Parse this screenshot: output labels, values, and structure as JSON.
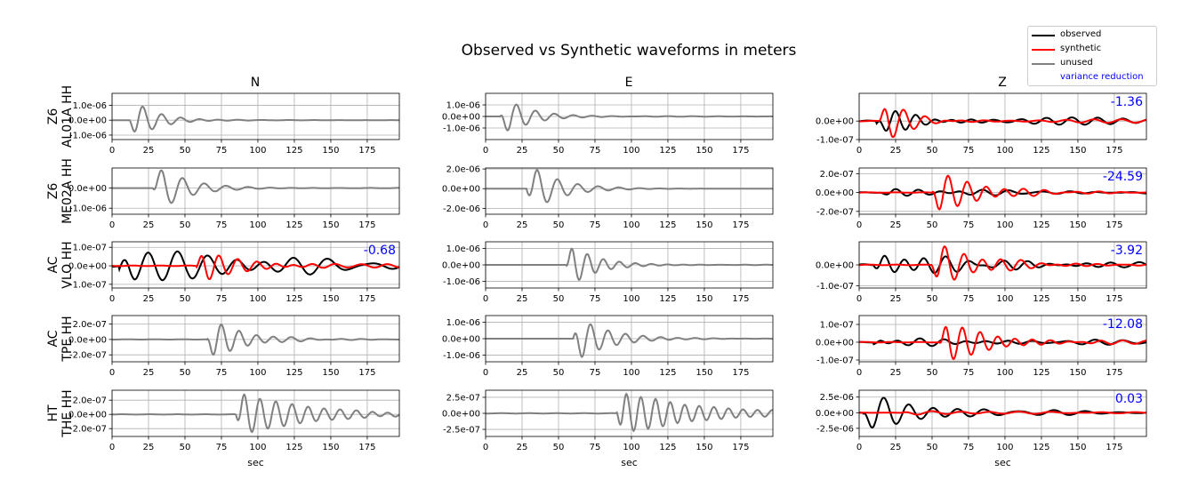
{
  "chart_data": {
    "type": "line",
    "title": "Observed vs Synthetic waveforms in meters",
    "columns": [
      "N",
      "E",
      "Z"
    ],
    "xlabel": "sec",
    "xlim": [
      0,
      197
    ],
    "xticks": [
      0,
      25,
      50,
      75,
      100,
      125,
      150,
      175
    ],
    "grid": true,
    "legend": {
      "placement": "top-right",
      "entries": [
        {
          "label": "observed",
          "color": "#000000"
        },
        {
          "label": "synthetic",
          "color": "#ff0000"
        },
        {
          "label": "unused",
          "color": "#808080"
        },
        {
          "label": "variance reduction",
          "color": "#0000ff",
          "text_only": true
        }
      ]
    },
    "stations": [
      {
        "label": "Z6\nAL01A HH",
        "panels": [
          {
            "component": "N",
            "used": false,
            "ylim": [
              -1.3e-06,
              1.8e-06
            ],
            "yticks": [
              {
                "v": 1e-06,
                "t": "1.0e-06"
              },
              {
                "v": 0,
                "t": "0.0e+00"
              },
              {
                "v": -1e-06,
                "t": "-1.0e-06"
              }
            ],
            "unused_wave": {
              "onset": 12,
              "amp": 1.6e-06,
              "period": 13,
              "decay": 16,
              "coda": 1.5e-08,
              "seed": 1
            }
          },
          {
            "component": "E",
            "used": false,
            "ylim": [
              -2e-06,
              2e-06
            ],
            "yticks": [
              {
                "v": 1e-06,
                "t": "1.0e-06"
              },
              {
                "v": 0,
                "t": "0.0e+00"
              },
              {
                "v": -1e-06,
                "t": "-1.0e-06"
              }
            ],
            "unused_wave": {
              "onset": 10,
              "amp": 1.9e-06,
              "period": 13,
              "decay": 18,
              "coda": 2e-08,
              "seed": 2
            }
          },
          {
            "component": "Z",
            "used": true,
            "vr": "-1.36",
            "ylim": [
              -1e-07,
              1.5e-07
            ],
            "yticks": [
              {
                "v": 0,
                "t": "0.0e+00"
              },
              {
                "v": -1e-07,
                "t": "-1.0e-07"
              }
            ],
            "observed": {
              "onset": 12,
              "amp": 7e-08,
              "period": 13,
              "decay": 25,
              "coda": 2e-08,
              "seed": 3
            },
            "synthetic": {
              "onset": 14,
              "amp": 1.6e-07,
              "period": 14,
              "decay": 15,
              "coda": 1e-08,
              "seed": 4
            }
          }
        ]
      },
      {
        "label": "Z6\nME02A HH",
        "panels": [
          {
            "component": "N",
            "used": false,
            "ylim": [
              -1.3e-06,
              1e-06
            ],
            "yticks": [
              {
                "v": 0,
                "t": "0.0e+00"
              },
              {
                "v": -1e-06,
                "t": "-1.0e-06"
              }
            ],
            "unused_wave": {
              "onset": 28,
              "amp": 1.4e-06,
              "period": 15,
              "decay": 20,
              "coda": 1e-08,
              "seed": 5
            }
          },
          {
            "component": "E",
            "used": false,
            "ylim": [
              -2.6e-06,
              2.1e-06
            ],
            "yticks": [
              {
                "v": 2e-06,
                "t": "2.0e-06"
              },
              {
                "v": 0,
                "t": "0.0e+00"
              },
              {
                "v": -2e-06,
                "t": "-2.0e-06"
              }
            ],
            "unused_wave": {
              "onset": 28,
              "amp": 2.8e-06,
              "period": 14,
              "decay": 20,
              "coda": 1e-08,
              "seed": 6
            }
          },
          {
            "component": "Z",
            "used": true,
            "vr": "-24.59",
            "ylim": [
              -2.3e-07,
              2.6e-07
            ],
            "yticks": [
              {
                "v": 2e-07,
                "t": "2.0e-07"
              },
              {
                "v": 0,
                "t": "0.0e+00"
              },
              {
                "v": -2e-07,
                "t": "-2.0e-07"
              }
            ],
            "observed": {
              "onset": 15,
              "amp": 4e-08,
              "period": 15,
              "decay": 60,
              "coda": 2e-08,
              "seed": 7
            },
            "synthetic": {
              "onset": 50,
              "amp": 2.6e-07,
              "period": 13,
              "decay": 28,
              "coda": 1.5e-08,
              "seed": 8
            }
          }
        ]
      },
      {
        "label": "AC\nVLO HH",
        "panels": [
          {
            "component": "N",
            "used": true,
            "vr": "-0.68",
            "ylim": [
              -1.2e-07,
              1.3e-07
            ],
            "yticks": [
              {
                "v": 1e-07,
                "t": "1.0e-07"
              },
              {
                "v": 0,
                "t": "0.0e+00"
              },
              {
                "v": -1e-07,
                "t": "-1.0e-07"
              }
            ],
            "observed": {
              "onset": 5,
              "amp": 1.2e-07,
              "period": 20,
              "decay": 70,
              "coda": 3e-08,
              "seed": 9
            },
            "synthetic": {
              "onset": 58,
              "amp": 1.1e-07,
              "period": 13,
              "decay": 25,
              "coda": 1e-08,
              "seed": 10
            }
          },
          {
            "component": "E",
            "used": false,
            "ylim": [
              -1.4e-06,
              1.4e-06
            ],
            "yticks": [
              {
                "v": 1e-06,
                "t": "1.0e-06"
              },
              {
                "v": 0,
                "t": "0.0e+00"
              },
              {
                "v": -1e-06,
                "t": "-1.0e-06"
              }
            ],
            "unused_wave": {
              "onset": 55,
              "amp": 1.5e-06,
              "period": 11,
              "decay": 18,
              "coda": 1e-08,
              "seed": 11
            }
          },
          {
            "component": "Z",
            "used": true,
            "vr": "-3.92",
            "ylim": [
              -1.1e-07,
              1.1e-07
            ],
            "yticks": [
              {
                "v": 0,
                "t": "0.0e+00"
              },
              {
                "v": -1e-07,
                "t": "-1.0e-07"
              }
            ],
            "observed": {
              "onset": 10,
              "amp": 5e-08,
              "period": 14,
              "decay": 60,
              "coda": 2e-08,
              "seed": 12
            },
            "synthetic": {
              "onset": 50,
              "amp": 1.1e-07,
              "period": 13,
              "decay": 30,
              "coda": 1e-08,
              "seed": 13
            }
          }
        ]
      },
      {
        "label": "AC\nTPE HH",
        "panels": [
          {
            "component": "N",
            "used": false,
            "ylim": [
              -2.9e-07,
              3.1e-07
            ],
            "yticks": [
              {
                "v": 2e-07,
                "t": "2.0e-07"
              },
              {
                "v": 0,
                "t": "0.0e+00"
              },
              {
                "v": -2e-07,
                "t": "-2.0e-07"
              }
            ],
            "unused_wave": {
              "onset": 65,
              "amp": 3e-07,
              "period": 12,
              "decay": 22,
              "coda": 1e-08,
              "seed": 14
            }
          },
          {
            "component": "E",
            "used": false,
            "ylim": [
              -1.4e-06,
              1.4e-06
            ],
            "yticks": [
              {
                "v": 1e-06,
                "t": "1.0e-06"
              },
              {
                "v": 0,
                "t": "0.0e+00"
              },
              {
                "v": -1e-06,
                "t": "-1.0e-06"
              }
            ],
            "unused_wave": {
              "onset": 60,
              "amp": 1.5e-06,
              "period": 12,
              "decay": 22,
              "coda": 1e-08,
              "seed": 15
            }
          },
          {
            "component": "Z",
            "used": true,
            "vr": "-12.08",
            "ylim": [
              -1.1e-07,
              1.5e-07
            ],
            "yticks": [
              {
                "v": 1e-07,
                "t": "1.0e-07"
              },
              {
                "v": 0,
                "t": "0.0e+00"
              },
              {
                "v": -1e-07,
                "t": "-1.0e-07"
              }
            ],
            "observed": {
              "onset": 10,
              "amp": 2e-08,
              "period": 15,
              "decay": 80,
              "coda": 1.2e-08,
              "seed": 16
            },
            "synthetic": {
              "onset": 55,
              "amp": 1.4e-07,
              "period": 12,
              "decay": 28,
              "coda": 1e-08,
              "seed": 17
            }
          }
        ]
      },
      {
        "label": "HT\nTHE HH",
        "panels": [
          {
            "component": "N",
            "used": false,
            "ylim": [
              -3.1e-07,
              3.4e-07
            ],
            "yticks": [
              {
                "v": 2e-07,
                "t": "2.0e-07"
              },
              {
                "v": 0,
                "t": "0.0e+00"
              },
              {
                "v": -2e-07,
                "t": "-2.0e-07"
              }
            ],
            "unused_wave": {
              "onset": 85,
              "amp": 3.3e-07,
              "period": 11,
              "decay": 45,
              "coda": 1.5e-08,
              "seed": 18
            }
          },
          {
            "component": "E",
            "used": false,
            "ylim": [
              -3.6e-07,
              3.6e-07
            ],
            "yticks": [
              {
                "v": 2.5e-07,
                "t": "2.5e-07"
              },
              {
                "v": 0,
                "t": "0.0e+00"
              },
              {
                "v": -2.5e-07,
                "t": "-2.5e-07"
              }
            ],
            "unused_wave": {
              "onset": 90,
              "amp": 3.6e-07,
              "period": 10,
              "decay": 50,
              "coda": 1.5e-08,
              "seed": 19
            }
          },
          {
            "component": "Z",
            "used": true,
            "vr": "0.03",
            "ylim": [
              -3.8e-06,
              3.6e-06
            ],
            "yticks": [
              {
                "v": 2.5e-06,
                "t": "2.5e-06"
              },
              {
                "v": 0,
                "t": "0.0e+00"
              },
              {
                "v": -2.5e-06,
                "t": "-2.5e-06"
              }
            ],
            "observed": {
              "onset": 3,
              "amp": 3.3e-06,
              "period": 17,
              "decay": 35,
              "coda": 4e-07,
              "seed": 20
            },
            "synthetic": {
              "onset": 30,
              "amp": 3e-07,
              "period": 20,
              "decay": 90,
              "coda": 1e-07,
              "seed": 21
            }
          }
        ]
      }
    ]
  }
}
